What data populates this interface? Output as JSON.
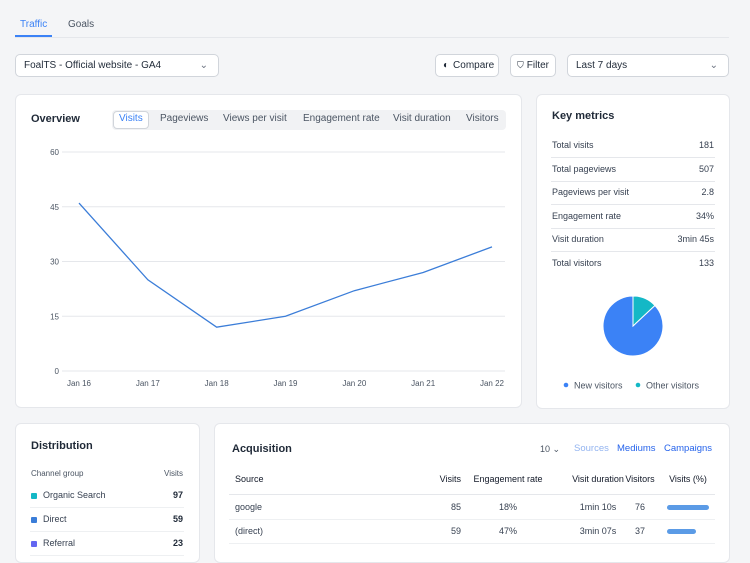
{
  "tabs": [
    "Traffic",
    "Goals"
  ],
  "site_select": "FoalTS - Official website - GA4",
  "compare": "Compare",
  "filter": "Filter",
  "period": "Last 7 days",
  "overview": {
    "title": "Overview",
    "metrics": [
      "Visits",
      "Pageviews",
      "Views per visit",
      "Engagement rate",
      "Visit duration",
      "Visitors"
    ],
    "chart": {
      "type": "line",
      "x": [
        "Jan 16",
        "Jan 17",
        "Jan 18",
        "Jan 19",
        "Jan 20",
        "Jan 21",
        "Jan 22"
      ],
      "values": [
        46,
        25,
        12,
        15,
        22,
        27,
        34
      ],
      "color": "#3b7dd8",
      "ylim": [
        0,
        60
      ],
      "yticks": [
        0,
        15,
        30,
        45,
        60
      ],
      "grid": true
    }
  },
  "key_metrics": {
    "title": "Key metrics",
    "rows": [
      [
        "Total visits",
        "181"
      ],
      [
        "Total pageviews",
        "507"
      ],
      [
        "Pageviews per visit",
        "2.8"
      ],
      [
        "Engagement rate",
        "34%"
      ],
      [
        "Visit duration",
        "3min 45s"
      ],
      [
        "Total visitors",
        "133"
      ]
    ],
    "chart": {
      "type": "pie",
      "categories": [
        "New visitors",
        "Other visitors"
      ],
      "values": [
        87,
        13
      ],
      "colors": [
        "#3b82f6",
        "#14b8c6"
      ]
    }
  },
  "distribution": {
    "title": "Distribution",
    "columns": [
      "Channel group",
      "Visits"
    ],
    "rows": [
      [
        "Organic Search",
        "97"
      ],
      [
        "Direct",
        "59"
      ],
      [
        "Referral",
        "23"
      ]
    ],
    "colors": [
      "#14b8c6",
      "#3b7dd8",
      "#6366f1"
    ]
  },
  "acquisition": {
    "title": "Acquisition",
    "page_size": "10",
    "views": [
      "Sources",
      "Mediums",
      "Campaigns"
    ],
    "columns": [
      "Source",
      "Visits",
      "Engagement rate",
      "Visit duration",
      "Visitors",
      "Visits (%)"
    ],
    "rows": [
      [
        "google",
        "85",
        "18%",
        "1min 10s",
        "76"
      ],
      [
        "(direct)",
        "59",
        "47%",
        "3min 07s",
        "37"
      ]
    ],
    "visits_pct": [
      47,
      33
    ]
  }
}
